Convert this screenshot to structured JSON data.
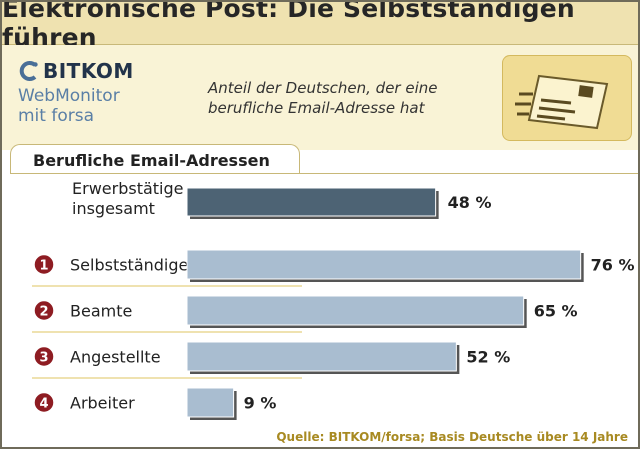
{
  "title": "Elektronische Post: Die Selbstständigen führen",
  "logo": {
    "brand": "BITKOM",
    "line2": "WebMonitor",
    "line3": "mit forsa"
  },
  "subtitle_line1": "Anteil der Deutschen, der eine",
  "subtitle_line2": "berufliche Email-Adresse hat",
  "panel_title": "Berufliche Email-Adressen",
  "source": "Quelle: BITKOM/forsa; Basis Deutsche über 14 Jahre",
  "colors": {
    "total_bar": "#4d6374",
    "group_bar": "#a9bdd0",
    "badge": "#8e1c22",
    "accent": "#efe2b0"
  },
  "chart_data": {
    "type": "bar",
    "orientation": "horizontal",
    "title": "Berufliche Email-Adressen",
    "value_unit": "%",
    "xlim": [
      0,
      100
    ],
    "grid": false,
    "total": {
      "label_line1": "Erwerbstätige",
      "label_line2": "insgesamt",
      "value": 48,
      "value_label": "48 %"
    },
    "categories": [
      {
        "rank": "1",
        "label": "Selbstständige",
        "value": 76,
        "value_label": "76 %"
      },
      {
        "rank": "2",
        "label": "Beamte",
        "value": 65,
        "value_label": "65 %"
      },
      {
        "rank": "3",
        "label": "Angestellte",
        "value": 52,
        "value_label": "52 %"
      },
      {
        "rank": "4",
        "label": "Arbeiter",
        "value": 9,
        "value_label": "9 %"
      }
    ]
  }
}
